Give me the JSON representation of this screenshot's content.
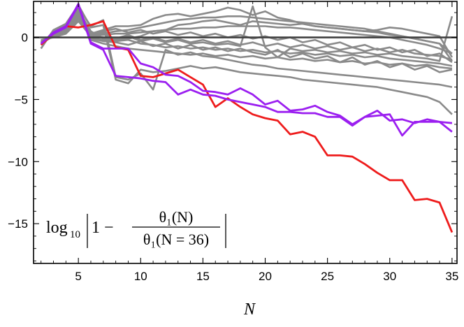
{
  "chart_data": {
    "type": "line",
    "title": "",
    "xlabel": "N",
    "ylabel": "",
    "xlim": [
      1.4,
      35.4
    ],
    "ylim": [
      -18.2,
      2.9
    ],
    "x_ticks": [
      5,
      10,
      15,
      20,
      25,
      30,
      35
    ],
    "x_tick_labels": [
      "5",
      "10",
      "15",
      "20",
      "25",
      "30",
      "35"
    ],
    "y_ticks": [
      0,
      -5,
      -10,
      -15
    ],
    "y_tick_labels": [
      "0",
      "−5",
      "−10",
      "−15"
    ],
    "grid": false,
    "legend": "none",
    "zero_line": true,
    "annotation": {
      "log": "log",
      "log_sub": "10",
      "one_minus": "1 −",
      "numerator": "θ₁(N)",
      "denominator": "θ₁(N = 36)"
    },
    "colors": {
      "gray": "#8a8a8a",
      "red": "#ee1c1c",
      "purple": "#9b1ff0",
      "axis": "#000000",
      "zero": "#404040"
    },
    "x": [
      2,
      3,
      4,
      5,
      6,
      7,
      8,
      9,
      10,
      11,
      12,
      13,
      14,
      15,
      16,
      17,
      18,
      19,
      20,
      21,
      22,
      23,
      24,
      25,
      26,
      27,
      28,
      29,
      30,
      31,
      32,
      33,
      34,
      35
    ],
    "series": [
      {
        "color": "red",
        "values": [
          -0.6,
          0.3,
          0.9,
          0.8,
          1.0,
          1.3,
          -0.8,
          -1.0,
          -3.1,
          -3.2,
          -2.9,
          -2.6,
          -3.2,
          -3.8,
          -5.6,
          -4.9,
          -5.6,
          -6.2,
          -6.5,
          -6.7,
          -7.8,
          -7.6,
          -8.0,
          -9.5,
          -9.5,
          -9.6,
          -10.2,
          -10.9,
          -11.5,
          -11.5,
          -13.1,
          -13.0,
          -13.3,
          -15.7
        ]
      },
      {
        "color": "purple",
        "values": [
          -0.5,
          0.4,
          0.9,
          2.7,
          -0.4,
          -0.9,
          -0.9,
          -0.9,
          -2.1,
          -2.4,
          -3.0,
          -3.1,
          -3.6,
          -4.3,
          -4.4,
          -4.6,
          -4.1,
          -4.6,
          -5.4,
          -5.1,
          -5.9,
          -5.8,
          -5.5,
          -6.0,
          -6.3,
          -7.0,
          -6.4,
          -5.9,
          -6.7,
          -6.6,
          -6.9,
          -6.6,
          -6.8,
          -7.6
        ]
      },
      {
        "color": "purple",
        "values": [
          -0.5,
          0.3,
          0.8,
          2.6,
          -0.5,
          -1.0,
          -3.1,
          -3.2,
          -3.3,
          -3.5,
          -3.6,
          -4.6,
          -4.2,
          -4.6,
          -4.7,
          -5.0,
          -5.2,
          -5.4,
          -5.6,
          -6.0,
          -6.0,
          -6.1,
          -6.1,
          -6.4,
          -6.4,
          -7.1,
          -6.4,
          -6.3,
          -6.2,
          -7.9,
          -6.8,
          -6.8,
          -6.8,
          -6.9
        ]
      },
      {
        "color": "gray",
        "values": [
          -0.9,
          0.6,
          1.1,
          2.6,
          0.8,
          1.0,
          -3.4,
          -3.7,
          -2.6,
          -2.8,
          -2.7,
          -2.5,
          -2.3,
          -2.5,
          -2.4,
          -2.6,
          -2.8,
          -2.9,
          -3.0,
          -3.1,
          -3.2,
          -3.4,
          -3.5,
          -3.6,
          -3.7,
          -3.8,
          -3.9,
          -4.0,
          -4.2,
          -4.4,
          -4.6,
          -4.8,
          -5.2,
          -6.2
        ]
      },
      {
        "color": "gray",
        "values": [
          -0.6,
          0.5,
          1.0,
          2.4,
          0.9,
          1.4,
          -3.2,
          -3.4,
          -2.9,
          -4.2,
          -1.0,
          -1.4,
          -1.2,
          -1.5,
          -1.6,
          -1.8,
          -2.0,
          -2.2,
          -2.3,
          -2.5,
          -2.6,
          -2.7,
          -2.8,
          -2.9,
          -3.0,
          -3.1,
          -3.2,
          -3.3,
          -3.4,
          -3.5,
          -3.6,
          -3.7,
          -3.8,
          -4.0
        ]
      },
      {
        "color": "gray",
        "values": [
          -0.4,
          0.2,
          0.7,
          2.2,
          0.5,
          -0.1,
          -0.2,
          -0.1,
          0.1,
          0.5,
          0.6,
          1.0,
          1.1,
          1.3,
          1.4,
          1.2,
          1.0,
          1.3,
          1.2,
          1.1,
          1.0,
          1.1,
          0.9,
          0.8,
          0.7,
          0.6,
          0.5,
          0.4,
          0.2,
          0.1,
          -0.1,
          -0.3,
          -0.5,
          -1.9
        ]
      },
      {
        "color": "gray",
        "values": [
          -0.5,
          0.1,
          0.5,
          1.9,
          0.3,
          0.6,
          0.9,
          0.9,
          1.0,
          1.5,
          1.8,
          1.9,
          1.7,
          1.9,
          2.1,
          2.4,
          2.2,
          1.8,
          2.1,
          1.6,
          1.4,
          1.1,
          0.9,
          0.8,
          0.7,
          0.6,
          0.5,
          0.6,
          0.8,
          0.7,
          0.5,
          0.3,
          0.1,
          -1.6
        ]
      },
      {
        "color": "gray",
        "values": [
          -0.3,
          0.1,
          0.4,
          1.6,
          0.2,
          0.3,
          0.5,
          0.6,
          0.8,
          1.0,
          1.2,
          1.4,
          1.5,
          1.6,
          1.6,
          1.7,
          1.7,
          1.6,
          1.5,
          1.4,
          1.3,
          1.2,
          1.1,
          1.0,
          0.9,
          0.8,
          0.7,
          0.5,
          0.3,
          0.1,
          -0.1,
          -0.3,
          -0.5,
          -1.3
        ]
      },
      {
        "color": "gray",
        "values": [
          -0.2,
          0.0,
          0.3,
          1.3,
          0.1,
          0.2,
          0.3,
          0.3,
          0.4,
          0.5,
          0.6,
          0.7,
          0.7,
          0.8,
          0.8,
          0.9,
          0.9,
          0.9,
          0.9,
          0.8,
          0.8,
          0.7,
          0.6,
          0.5,
          0.4,
          0.3,
          0.2,
          0.1,
          0.0,
          -0.2,
          -0.4,
          -0.6,
          -0.9,
          -1.3
        ]
      },
      {
        "color": "gray",
        "values": [
          -0.4,
          0.2,
          0.6,
          2.0,
          0.0,
          -0.2,
          -0.3,
          -0.2,
          -0.5,
          -0.6,
          -0.8,
          -0.7,
          -0.9,
          -0.8,
          -1.0,
          -0.9,
          -1.1,
          -1.0,
          -1.2,
          -1.1,
          -1.3,
          -1.2,
          -1.4,
          -1.3,
          -1.5,
          -1.4,
          -1.6,
          -1.5,
          -1.7,
          -1.8,
          -1.9,
          -2.0,
          -2.1,
          -2.3
        ]
      },
      {
        "color": "gray",
        "values": [
          -0.5,
          0.3,
          0.8,
          2.3,
          0.2,
          0.4,
          -0.2,
          0.1,
          -0.3,
          -0.1,
          -0.4,
          -0.2,
          -0.5,
          -0.4,
          -0.6,
          -0.5,
          -0.7,
          2.5,
          -0.8,
          -1.6,
          -0.9,
          -1.1,
          -1.0,
          -1.2,
          -1.1,
          -1.3,
          -1.2,
          -1.4,
          -1.3,
          -1.5,
          -1.6,
          -1.7,
          -1.9,
          1.7
        ]
      },
      {
        "color": "gray",
        "values": [
          -0.3,
          0.1,
          0.5,
          1.8,
          0.1,
          0.0,
          -0.1,
          0.2,
          -0.2,
          0.0,
          -0.3,
          -0.1,
          -0.4,
          -0.2,
          -0.5,
          -0.3,
          -0.6,
          -0.4,
          -0.7,
          -0.5,
          -0.8,
          -0.6,
          -0.9,
          -0.7,
          -1.0,
          -0.8,
          -1.1,
          -0.9,
          -1.2,
          -1.0,
          -1.3,
          -1.4,
          -1.5,
          -1.8
        ]
      },
      {
        "color": "gray",
        "values": [
          -0.4,
          0.2,
          0.6,
          1.7,
          -0.1,
          -0.3,
          -0.4,
          -0.6,
          -0.3,
          -0.7,
          -0.5,
          -0.9,
          -0.6,
          -1.0,
          -0.8,
          -1.1,
          -0.9,
          -1.2,
          -1.4,
          -1.0,
          -1.6,
          -1.3,
          -1.7,
          -1.5,
          -2.0,
          -1.6,
          -2.2,
          -1.9,
          -2.4,
          -2.1,
          -2.6,
          -2.3,
          -2.8,
          -2.6
        ]
      },
      {
        "color": "gray",
        "values": [
          -0.3,
          0.1,
          0.4,
          1.5,
          0.3,
          0.5,
          0.7,
          0.4,
          0.6,
          0.3,
          0.5,
          0.2,
          0.4,
          0.1,
          0.3,
          0.0,
          0.2,
          -0.1,
          0.1,
          -0.2,
          0.0,
          -0.4,
          -0.2,
          -0.6,
          -0.4,
          -0.8,
          -0.6,
          -1.0,
          -0.8,
          -1.2,
          -1.0,
          -1.5,
          -1.3,
          -2.0
        ]
      },
      {
        "color": "gray",
        "values": [
          -0.5,
          0.2,
          0.7,
          2.1,
          -0.2,
          -0.5,
          -0.7,
          -0.9,
          -1.0,
          -1.1,
          -1.2,
          -1.3,
          -1.4,
          -1.3,
          -1.5,
          -1.4,
          -1.6,
          -1.5,
          -1.7,
          -1.6,
          -1.8,
          -1.7,
          -1.9,
          -1.8,
          -2.0,
          -1.9,
          -2.1,
          -2.0,
          -2.2,
          -2.1,
          -2.3,
          -2.2,
          -2.4,
          -2.5
        ]
      }
    ]
  }
}
